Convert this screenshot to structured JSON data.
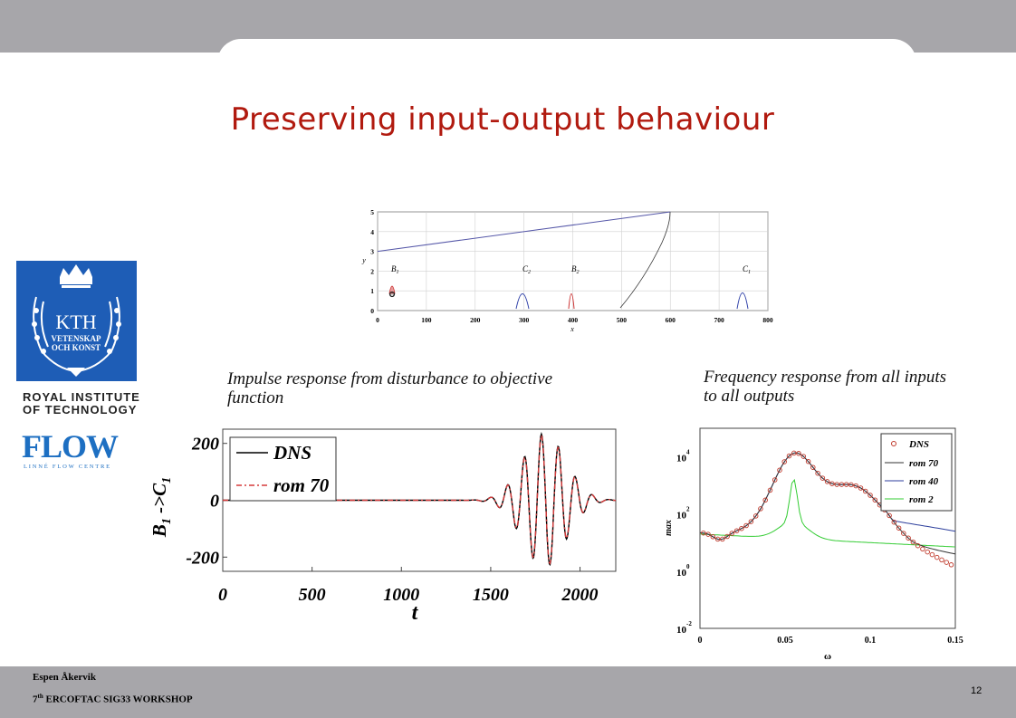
{
  "slide": {
    "title": "Preserving input-output behaviour",
    "caption_left": "Impulse response from disturbance to objective function",
    "caption_right": "Frequency response from all inputs to all outputs",
    "author": "Espen Åkervik",
    "workshop_sup": "th",
    "workshop_num": "7",
    "workshop_rest": " ERCOFTAC SIG33 WORKSHOP",
    "page_number": "12"
  },
  "logos": {
    "kth_text": "KTH",
    "kth_line1": "VETENSKAP",
    "kth_line2": "OCH KONST",
    "royal_line1": "ROYAL INSTITUTE",
    "royal_line2": "OF TECHNOLOGY",
    "flow_text": "FLOW",
    "flow_sub": "LINNÉ FLOW CENTRE"
  },
  "chart_data": [
    {
      "type": "line",
      "xlabel": "x",
      "ylabel": "y",
      "xlim": [
        0,
        800
      ],
      "ylim": [
        0,
        5
      ],
      "x_ticks": [
        "0",
        "100",
        "200",
        "300",
        "400",
        "500",
        "600",
        "700",
        "800"
      ],
      "y_ticks": [
        "0",
        "1",
        "2",
        "3",
        "4",
        "5"
      ],
      "annotations": [
        {
          "base": "B",
          "sub": "1",
          "x": 35
        },
        {
          "base": "C",
          "sub": "2",
          "x": 310
        },
        {
          "base": "B",
          "sub": "2",
          "x": 400
        },
        {
          "base": "C",
          "sub": "1",
          "x": 755
        }
      ],
      "marker_label": "0",
      "boundary_layer": {
        "x": [
          0,
          600
        ],
        "y": [
          3,
          5
        ]
      },
      "grid": true
    },
    {
      "type": "line",
      "xlabel": "t",
      "ylabel_base": "B",
      "ylabel_sub1": "1",
      "ylabel_mid": " ->C",
      "ylabel_sub2": "1",
      "xlim": [
        0,
        2200
      ],
      "ylim": [
        -250,
        250
      ],
      "x_ticks": [
        "0",
        "500",
        "1000",
        "1500",
        "2000"
      ],
      "y_ticks": [
        "200",
        "0",
        "-200"
      ],
      "series": [
        {
          "name": "DNS",
          "color": "#000000"
        },
        {
          "name": "rom 70",
          "color": "#d63a3a"
        }
      ],
      "legend": "top-left"
    },
    {
      "type": "line",
      "xlabel": "ω",
      "ylabel": "max",
      "xlim": [
        0,
        0.15
      ],
      "ylim": [
        -2,
        5
      ],
      "y_scale": "log",
      "x_ticks": [
        "0",
        "0.05",
        "0.1",
        "0.15"
      ],
      "y_ticks": [
        {
          "base": "10",
          "exp": "4"
        },
        {
          "base": "10",
          "exp": "2"
        },
        {
          "base": "10",
          "exp": "0"
        },
        {
          "base": "10",
          "exp": "-2"
        }
      ],
      "series": [
        {
          "name": "DNS",
          "color": "#c0392b",
          "marker": "circle"
        },
        {
          "name": "rom 70",
          "color": "#333333"
        },
        {
          "name": "rom 40",
          "color": "#2c3e9c"
        },
        {
          "name": "rom 2",
          "color": "#33cc33"
        }
      ],
      "legend": "top-right"
    }
  ]
}
